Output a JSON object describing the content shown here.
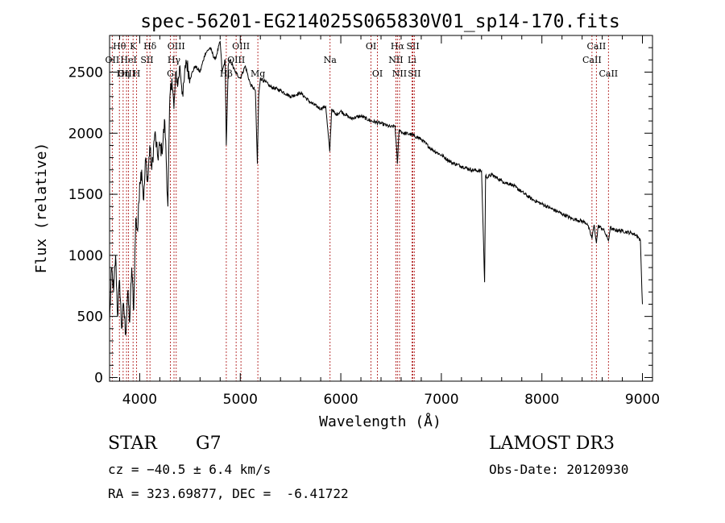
{
  "chart_data": {
    "type": "line",
    "title": "spec-56201-EG214025S065830V01_sp14-170.fits",
    "xlabel": "Wavelength (Å)",
    "ylabel": "Flux (relative)",
    "xlim": [
      3700,
      9100
    ],
    "ylim": [
      -30,
      2800
    ],
    "xticks": [
      4000,
      5000,
      6000,
      7000,
      8000,
      9000
    ],
    "yticks": [
      0,
      500,
      1000,
      1500,
      2000,
      2500
    ],
    "series": [
      {
        "name": "flux",
        "x": [
          3700,
          3720,
          3740,
          3760,
          3780,
          3800,
          3820,
          3840,
          3860,
          3880,
          3900,
          3920,
          3940,
          3960,
          3980,
          4000,
          4020,
          4040,
          4060,
          4080,
          4100,
          4120,
          4150,
          4180,
          4200,
          4220,
          4250,
          4280,
          4300,
          4320,
          4340,
          4360,
          4380,
          4400,
          4430,
          4460,
          4500,
          4550,
          4600,
          4650,
          4700,
          4750,
          4800,
          4820,
          4850,
          4861,
          4880,
          4900,
          4950,
          5000,
          5050,
          5100,
          5150,
          5170,
          5183,
          5200,
          5250,
          5300,
          5400,
          5500,
          5600,
          5700,
          5800,
          5850,
          5890,
          5910,
          5950,
          6000,
          6100,
          6200,
          6300,
          6400,
          6500,
          6540,
          6563,
          6580,
          6620,
          6700,
          6800,
          6900,
          7000,
          7100,
          7200,
          7300,
          7400,
          7430,
          7440,
          7460,
          7500,
          7580,
          7600,
          7620,
          7700,
          7800,
          7900,
          8000,
          8100,
          8200,
          8300,
          8400,
          8450,
          8498,
          8520,
          8542,
          8560,
          8600,
          8620,
          8662,
          8680,
          8700,
          8800,
          8900,
          8950,
          8980,
          8995,
          9000
        ],
        "values": [
          450,
          900,
          700,
          1000,
          500,
          800,
          400,
          600,
          350,
          700,
          450,
          900,
          550,
          1300,
          1200,
          1600,
          1700,
          1450,
          1800,
          1600,
          1900,
          1700,
          2000,
          1800,
          1900,
          1850,
          2100,
          1400,
          2300,
          2450,
          2200,
          2500,
          2400,
          2550,
          2300,
          2600,
          2450,
          2550,
          2500,
          2650,
          2700,
          2600,
          2750,
          2500,
          2600,
          1900,
          2550,
          2600,
          2500,
          2450,
          2550,
          2400,
          2350,
          1750,
          2300,
          2450,
          2420,
          2380,
          2350,
          2300,
          2330,
          2250,
          2200,
          2220,
          1850,
          2200,
          2150,
          2180,
          2120,
          2140,
          2100,
          2080,
          2050,
          2060,
          1750,
          2030,
          2000,
          1990,
          1950,
          1870,
          1820,
          1760,
          1730,
          1700,
          1690,
          780,
          1650,
          1640,
          1660,
          1620,
          1610,
          1600,
          1580,
          1520,
          1460,
          1420,
          1380,
          1340,
          1300,
          1280,
          1260,
          1140,
          1250,
          1100,
          1240,
          1220,
          1200,
          1120,
          1230,
          1210,
          1200,
          1180,
          1160,
          1120,
          700,
          600
        ]
      }
    ],
    "lines": [
      {
        "label": "Hθ",
        "x": 3798,
        "row": 1
      },
      {
        "label": "OII",
        "x": 3727,
        "row": 2
      },
      {
        "label": "OIII",
        "x": 3869,
        "row": 3
      },
      {
        "label": "K",
        "x": 3934,
        "row": 1
      },
      {
        "label": "HeI",
        "x": 3889,
        "row": 2
      },
      {
        "label": "Hη",
        "x": 3835,
        "row": 3
      },
      {
        "label": "SII",
        "x": 4072,
        "row": 2
      },
      {
        "label": "H",
        "x": 3969,
        "row": 3
      },
      {
        "label": "Hδ",
        "x": 4102,
        "row": 1
      },
      {
        "label": "OIII",
        "x": 4363,
        "row": 1
      },
      {
        "label": "Hγ",
        "x": 4341,
        "row": 2
      },
      {
        "label": "G",
        "x": 4305,
        "row": 3
      },
      {
        "label": "Hβ",
        "x": 4861,
        "row": 3
      },
      {
        "label": "OIII",
        "x": 5007,
        "row": 1
      },
      {
        "label": "OIII",
        "x": 4959,
        "row": 2
      },
      {
        "label": "Mg",
        "x": 5175,
        "row": 3
      },
      {
        "label": "Na",
        "x": 5893,
        "row": 2
      },
      {
        "label": "OI",
        "x": 6300,
        "row": 1
      },
      {
        "label": "OI",
        "x": 6364,
        "row": 3
      },
      {
        "label": "Hα",
        "x": 6563,
        "row": 1
      },
      {
        "label": "NII",
        "x": 6548,
        "row": 2
      },
      {
        "label": "NII",
        "x": 6584,
        "row": 3
      },
      {
        "label": "SII",
        "x": 6717,
        "row": 1
      },
      {
        "label": "Li",
        "x": 6708,
        "row": 2
      },
      {
        "label": "SII",
        "x": 6731,
        "row": 3
      },
      {
        "label": "CaII",
        "x": 8542,
        "row": 1
      },
      {
        "label": "CaII",
        "x": 8498,
        "row": 2
      },
      {
        "label": "CaII",
        "x": 8662,
        "row": 3
      }
    ],
    "grid": false,
    "legend": "none"
  },
  "info": {
    "object_class": "STAR",
    "subclass": "G7",
    "cz": "cz = −40.5 ± 6.4 km/s",
    "coords": "RA = 323.69877, DEC =  -6.41722",
    "survey": "LAMOST DR3",
    "obs_date": "Obs-Date: 20120930"
  },
  "colors": {
    "line": "#b22222",
    "spectrum": "#000000"
  }
}
